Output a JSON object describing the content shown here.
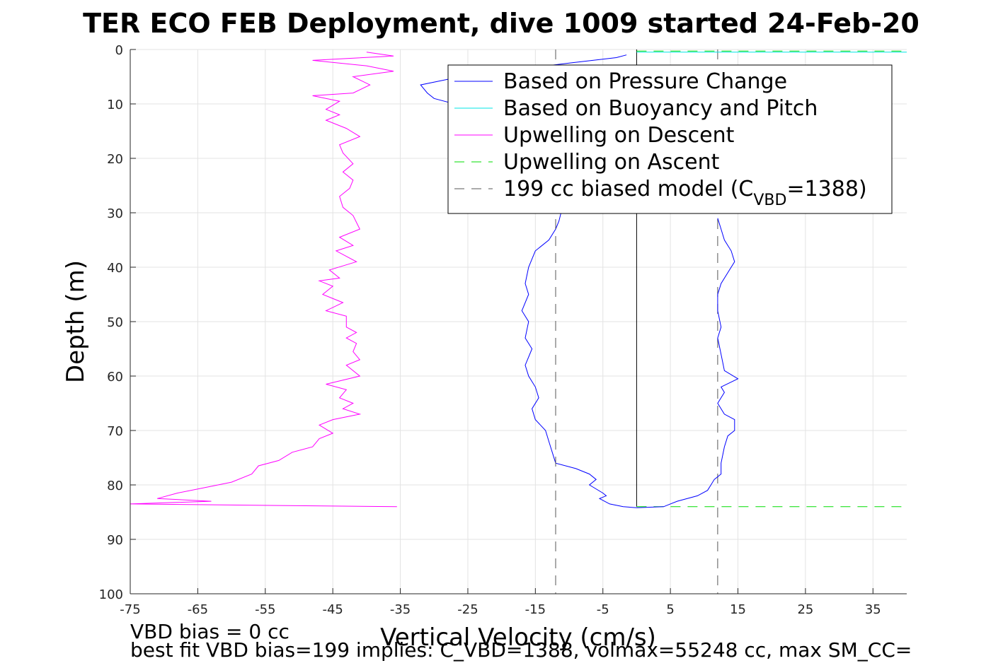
{
  "chart_data": {
    "type": "line",
    "title": "TER ECO FEB Deployment, dive 1009 started 24-Feb-20",
    "xlabel": "Vertical Velocity (cm/s)",
    "ylabel": "Depth (m)",
    "xlim": [
      -75,
      40
    ],
    "ylim": [
      0,
      100
    ],
    "y_reversed": true,
    "grid": true,
    "x_ticks": [
      -75,
      -65,
      -55,
      -45,
      -35,
      -25,
      -15,
      -5,
      5,
      15,
      25,
      35
    ],
    "y_ticks": [
      0,
      10,
      20,
      30,
      40,
      50,
      60,
      70,
      80,
      90,
      100
    ],
    "legend_position": "top-right",
    "series": [
      {
        "name": "Based on Pressure Change",
        "color": "#0000ff",
        "style": "solid",
        "points": [
          [
            -1.5,
            1.0
          ],
          [
            -3,
            1.5
          ],
          [
            -10,
            2.5
          ],
          [
            -20,
            4
          ],
          [
            -28,
            5.5
          ],
          [
            -32,
            6.5
          ],
          [
            -31,
            8
          ],
          [
            -30,
            9
          ],
          [
            -27,
            10
          ],
          [
            -22,
            12
          ],
          [
            -18,
            14
          ],
          [
            -15,
            17
          ],
          [
            -13,
            20
          ],
          [
            -12,
            23
          ],
          [
            -12,
            26
          ],
          [
            -11,
            29
          ],
          [
            -11.5,
            31.5
          ],
          [
            -12,
            33
          ],
          [
            -13,
            35
          ],
          [
            -15,
            37
          ],
          [
            -16,
            40
          ],
          [
            -16.5,
            43
          ],
          [
            -16,
            45
          ],
          [
            -17,
            48
          ],
          [
            -16,
            50
          ],
          [
            -16.5,
            53
          ],
          [
            -15.5,
            55
          ],
          [
            -16.5,
            58
          ],
          [
            -16,
            60
          ],
          [
            -15,
            62
          ],
          [
            -14.5,
            64
          ],
          [
            -15.5,
            66
          ],
          [
            -15,
            68
          ],
          [
            -13.5,
            70
          ],
          [
            -13,
            72
          ],
          [
            -12.5,
            74
          ],
          [
            -12,
            76
          ],
          [
            -9,
            77
          ],
          [
            -7,
            78
          ],
          [
            -6,
            79
          ],
          [
            -7,
            80
          ],
          [
            -5,
            81.5
          ],
          [
            -4.5,
            82
          ],
          [
            -5.5,
            82.5
          ],
          [
            -4,
            83.5
          ],
          [
            -2,
            84
          ],
          [
            0,
            84.2
          ],
          [
            4,
            84
          ],
          [
            5,
            83.5
          ],
          [
            6,
            83
          ],
          [
            9,
            82
          ],
          [
            10.5,
            81
          ],
          [
            11,
            80
          ],
          [
            11.5,
            79
          ],
          [
            12.5,
            78
          ],
          [
            12.5,
            76
          ],
          [
            13,
            73
          ],
          [
            13.5,
            71
          ],
          [
            14.5,
            70
          ],
          [
            14.5,
            68
          ],
          [
            13,
            67
          ],
          [
            12,
            65
          ],
          [
            13,
            63
          ],
          [
            12.5,
            62
          ],
          [
            15,
            60.5
          ],
          [
            13,
            59
          ],
          [
            12.5,
            56
          ],
          [
            12,
            53
          ],
          [
            12.5,
            51
          ],
          [
            12,
            48
          ],
          [
            12,
            45
          ],
          [
            12.5,
            43
          ],
          [
            13.5,
            41
          ],
          [
            14.5,
            39
          ],
          [
            14,
            37
          ],
          [
            13,
            35
          ],
          [
            12.5,
            33
          ],
          [
            12,
            31
          ]
        ]
      },
      {
        "name": "Based on Buoyancy and Pitch",
        "color": "#00e5e5",
        "style": "solid",
        "points": [
          [
            0,
            0.5
          ],
          [
            40,
            0.5
          ]
        ]
      },
      {
        "name": "Upwelling on Descent",
        "color": "#ff00ff",
        "style": "solid",
        "points": [
          [
            -40,
            0.5
          ],
          [
            -36,
            1.2
          ],
          [
            -48,
            2
          ],
          [
            -40,
            3
          ],
          [
            -36,
            4
          ],
          [
            -42,
            5
          ],
          [
            -39.5,
            6.5
          ],
          [
            -42,
            8
          ],
          [
            -48,
            8.5
          ],
          [
            -44,
            9.5
          ],
          [
            -46,
            11
          ],
          [
            -44,
            12
          ],
          [
            -46,
            13
          ],
          [
            -43,
            14.5
          ],
          [
            -41,
            16
          ],
          [
            -44,
            17.5
          ],
          [
            -43.5,
            19
          ],
          [
            -42,
            21
          ],
          [
            -43.5,
            22.5
          ],
          [
            -42,
            24
          ],
          [
            -42.5,
            25.5
          ],
          [
            -44,
            27
          ],
          [
            -43.5,
            29
          ],
          [
            -42,
            30.5
          ],
          [
            -41,
            33
          ],
          [
            -44,
            34.5
          ],
          [
            -42,
            36
          ],
          [
            -44.5,
            37
          ],
          [
            -41.5,
            39
          ],
          [
            -45.5,
            40.5
          ],
          [
            -44,
            42
          ],
          [
            -47,
            42.5
          ],
          [
            -45,
            43.5
          ],
          [
            -46.5,
            45
          ],
          [
            -43.5,
            46.5
          ],
          [
            -46,
            48
          ],
          [
            -43,
            49
          ],
          [
            -43,
            51
          ],
          [
            -41.5,
            52
          ],
          [
            -43,
            53
          ],
          [
            -41.5,
            54
          ],
          [
            -42,
            55.5
          ],
          [
            -41,
            57
          ],
          [
            -43,
            58
          ],
          [
            -41,
            60
          ],
          [
            -46,
            61.5
          ],
          [
            -43,
            62.5
          ],
          [
            -44,
            64
          ],
          [
            -42,
            65
          ],
          [
            -43.5,
            66
          ],
          [
            -41,
            67
          ],
          [
            -45,
            68
          ],
          [
            -47,
            69
          ],
          [
            -45,
            70.5
          ],
          [
            -47,
            71.5
          ],
          [
            -48,
            73
          ],
          [
            -51,
            74
          ],
          [
            -53,
            75.5
          ],
          [
            -56,
            76.5
          ],
          [
            -57,
            78
          ],
          [
            -60,
            79.5
          ],
          [
            -64,
            80.5
          ],
          [
            -68,
            81.5
          ],
          [
            -71,
            82.5
          ],
          [
            -63,
            83
          ],
          [
            -75,
            83.5
          ],
          [
            -35.5,
            84
          ]
        ]
      },
      {
        "name": "Upwelling on Ascent",
        "color": "#00dd00",
        "style": "dashed",
        "points": [
          [
            0,
            0.3
          ],
          [
            40,
            0.3
          ]
        ]
      },
      {
        "name": "199 cc biased model (C",
        "name_sub": "VBD",
        "name_tail": "=1388)",
        "color": "#555555",
        "style": "dashed",
        "points": [
          [
            -12,
            0
          ],
          [
            -12,
            100
          ]
        ]
      }
    ],
    "extra_lines": [
      {
        "color": "#555555",
        "style": "dashed",
        "x": 12,
        "y0": 0,
        "y1": 100
      },
      {
        "color": "#000000",
        "style": "solid",
        "x": 0,
        "y0": 0,
        "y1": 84
      },
      {
        "color": "#00dd00",
        "style": "dashed",
        "x0": 0,
        "x1": 40,
        "y": 84
      }
    ],
    "annotations": [
      "VBD bias = 0 cc",
      "best fit VBD bias=199 implies: C_VBD=1388, volmax=55248 cc, max SM_CC="
    ]
  }
}
